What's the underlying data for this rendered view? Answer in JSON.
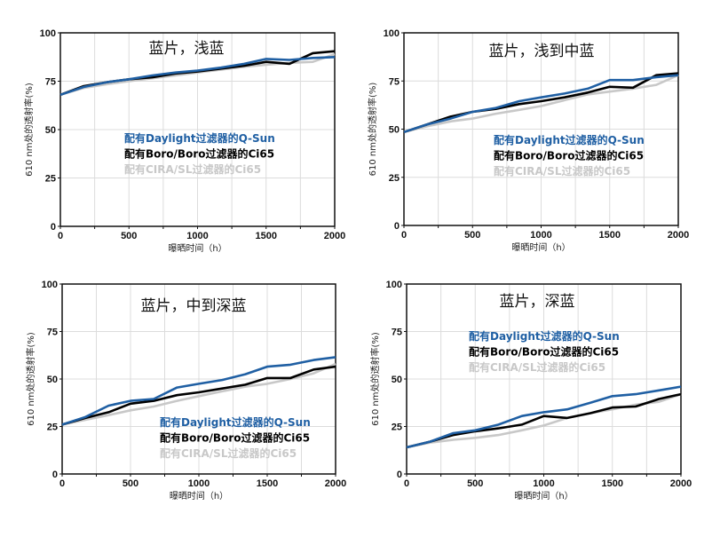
{
  "chart_data": [
    {
      "type": "line",
      "title": "蓝片，浅蓝",
      "xlabel": "曝晒时间（h）",
      "ylabel": "610 nm处的透射率(%)",
      "xlim": [
        0,
        2000
      ],
      "ylim": [
        0,
        100
      ],
      "xticks": [
        0,
        500,
        1000,
        1500,
        2000
      ],
      "yticks": [
        0,
        25,
        50,
        75,
        100
      ],
      "grid": true,
      "x": [
        0,
        170,
        340,
        500,
        670,
        840,
        1000,
        1170,
        1340,
        1500,
        1670,
        1840,
        2000
      ],
      "series": [
        {
          "name": "配有Daylight过滤器的Q-Sun",
          "color": "#1f5fa3",
          "values": [
            68,
            72,
            74.5,
            76,
            78,
            79.5,
            80.5,
            82,
            84,
            86.5,
            86,
            87,
            87.5
          ]
        },
        {
          "name": "配有Boro/Boro过滤器的Ci65",
          "color": "#000000",
          "values": [
            68,
            72.5,
            74.5,
            76,
            77,
            79,
            80,
            81.5,
            83,
            85,
            84,
            89.5,
            90.5
          ]
        },
        {
          "name": "配有CIRA/SL过滤器的Ci65",
          "color": "#c8c8c8",
          "values": [
            68,
            71.5,
            73.5,
            75,
            76.5,
            78,
            79.5,
            81,
            82.5,
            83.5,
            84.5,
            85,
            89
          ]
        }
      ]
    },
    {
      "type": "line",
      "title": "蓝片，浅到中蓝",
      "xlabel": "曝晒时间（h）",
      "ylabel": "610 nm处的透射率(%)",
      "xlim": [
        0,
        2000
      ],
      "ylim": [
        0,
        100
      ],
      "xticks": [
        0,
        500,
        1000,
        1500,
        2000
      ],
      "yticks": [
        0,
        25,
        50,
        75,
        100
      ],
      "grid": true,
      "x": [
        0,
        170,
        340,
        500,
        670,
        840,
        1000,
        1170,
        1340,
        1500,
        1670,
        1840,
        2000
      ],
      "series": [
        {
          "name": "配有Daylight过滤器的Q-Sun",
          "color": "#1f5fa3",
          "values": [
            48.5,
            52.5,
            55.5,
            59,
            61,
            64.5,
            66.5,
            68.5,
            71,
            75.5,
            75.5,
            77,
            78
          ]
        },
        {
          "name": "配有Boro/Boro过滤器的Ci65",
          "color": "#000000",
          "values": [
            48.5,
            52.5,
            56.5,
            59,
            60.5,
            63,
            64.5,
            66.5,
            69,
            72,
            71.5,
            78,
            79
          ]
        },
        {
          "name": "配有CIRA/SL过滤器的Ci65",
          "color": "#c8c8c8",
          "values": [
            48.5,
            51.5,
            54,
            55.5,
            58,
            60,
            62,
            65,
            68,
            69.5,
            71,
            73,
            78
          ]
        }
      ]
    },
    {
      "type": "line",
      "title": "蓝片，中到深蓝",
      "xlabel": "曝晒时间（h）",
      "ylabel": "610 nm处的透射率(%)",
      "xlim": [
        0,
        2000
      ],
      "ylim": [
        0,
        100
      ],
      "xticks": [
        0,
        500,
        1000,
        1500,
        2000
      ],
      "yticks": [
        0,
        25,
        50,
        75,
        100
      ],
      "grid": true,
      "x": [
        0,
        170,
        340,
        500,
        670,
        840,
        1000,
        1170,
        1340,
        1500,
        1670,
        1840,
        2000
      ],
      "series": [
        {
          "name": "配有Daylight过滤器的Q-Sun",
          "color": "#1f5fa3",
          "values": [
            26,
            30,
            36,
            38.5,
            39.5,
            45.5,
            47.5,
            49.5,
            52.5,
            56.5,
            57.5,
            60,
            61.5
          ]
        },
        {
          "name": "配有Boro/Boro过滤器的Ci65",
          "color": "#000000",
          "values": [
            26,
            29.5,
            32.5,
            37,
            38.5,
            41.5,
            43,
            45,
            47,
            50.5,
            50.5,
            55,
            56.5
          ]
        },
        {
          "name": "配有CIRA/SL过滤器的Ci65",
          "color": "#c8c8c8",
          "values": [
            26,
            28.5,
            31,
            33.5,
            35.5,
            38.5,
            41,
            43.5,
            46,
            47.5,
            50,
            53,
            58
          ]
        }
      ]
    },
    {
      "type": "line",
      "title": "蓝片，深蓝",
      "xlabel": "曝晒时间（h）",
      "ylabel": "610 nm处的透射率(%)",
      "xlim": [
        0,
        2000
      ],
      "ylim": [
        0,
        100
      ],
      "xticks": [
        0,
        500,
        1000,
        1500,
        2000
      ],
      "yticks": [
        0,
        25,
        50,
        75,
        100
      ],
      "grid": true,
      "x": [
        0,
        170,
        340,
        500,
        670,
        840,
        1000,
        1170,
        1340,
        1500,
        1670,
        1840,
        2000
      ],
      "series": [
        {
          "name": "配有Daylight过滤器的Q-Sun",
          "color": "#1f5fa3",
          "values": [
            14,
            17,
            21.5,
            23,
            26,
            30.5,
            32.5,
            34,
            37.5,
            41,
            42,
            44,
            46
          ]
        },
        {
          "name": "配有Boro/Boro过滤器的Ci65",
          "color": "#000000",
          "values": [
            14,
            17,
            20.5,
            22.5,
            24,
            26,
            30.5,
            29.5,
            32,
            35,
            35.5,
            39.5,
            42
          ]
        },
        {
          "name": "配有CIRA/SL过滤器的Ci65",
          "color": "#c8c8c8",
          "values": [
            14,
            16.5,
            18,
            19,
            20.5,
            23,
            25.5,
            29.5,
            32,
            34,
            36.5,
            38,
            42
          ]
        }
      ]
    }
  ]
}
